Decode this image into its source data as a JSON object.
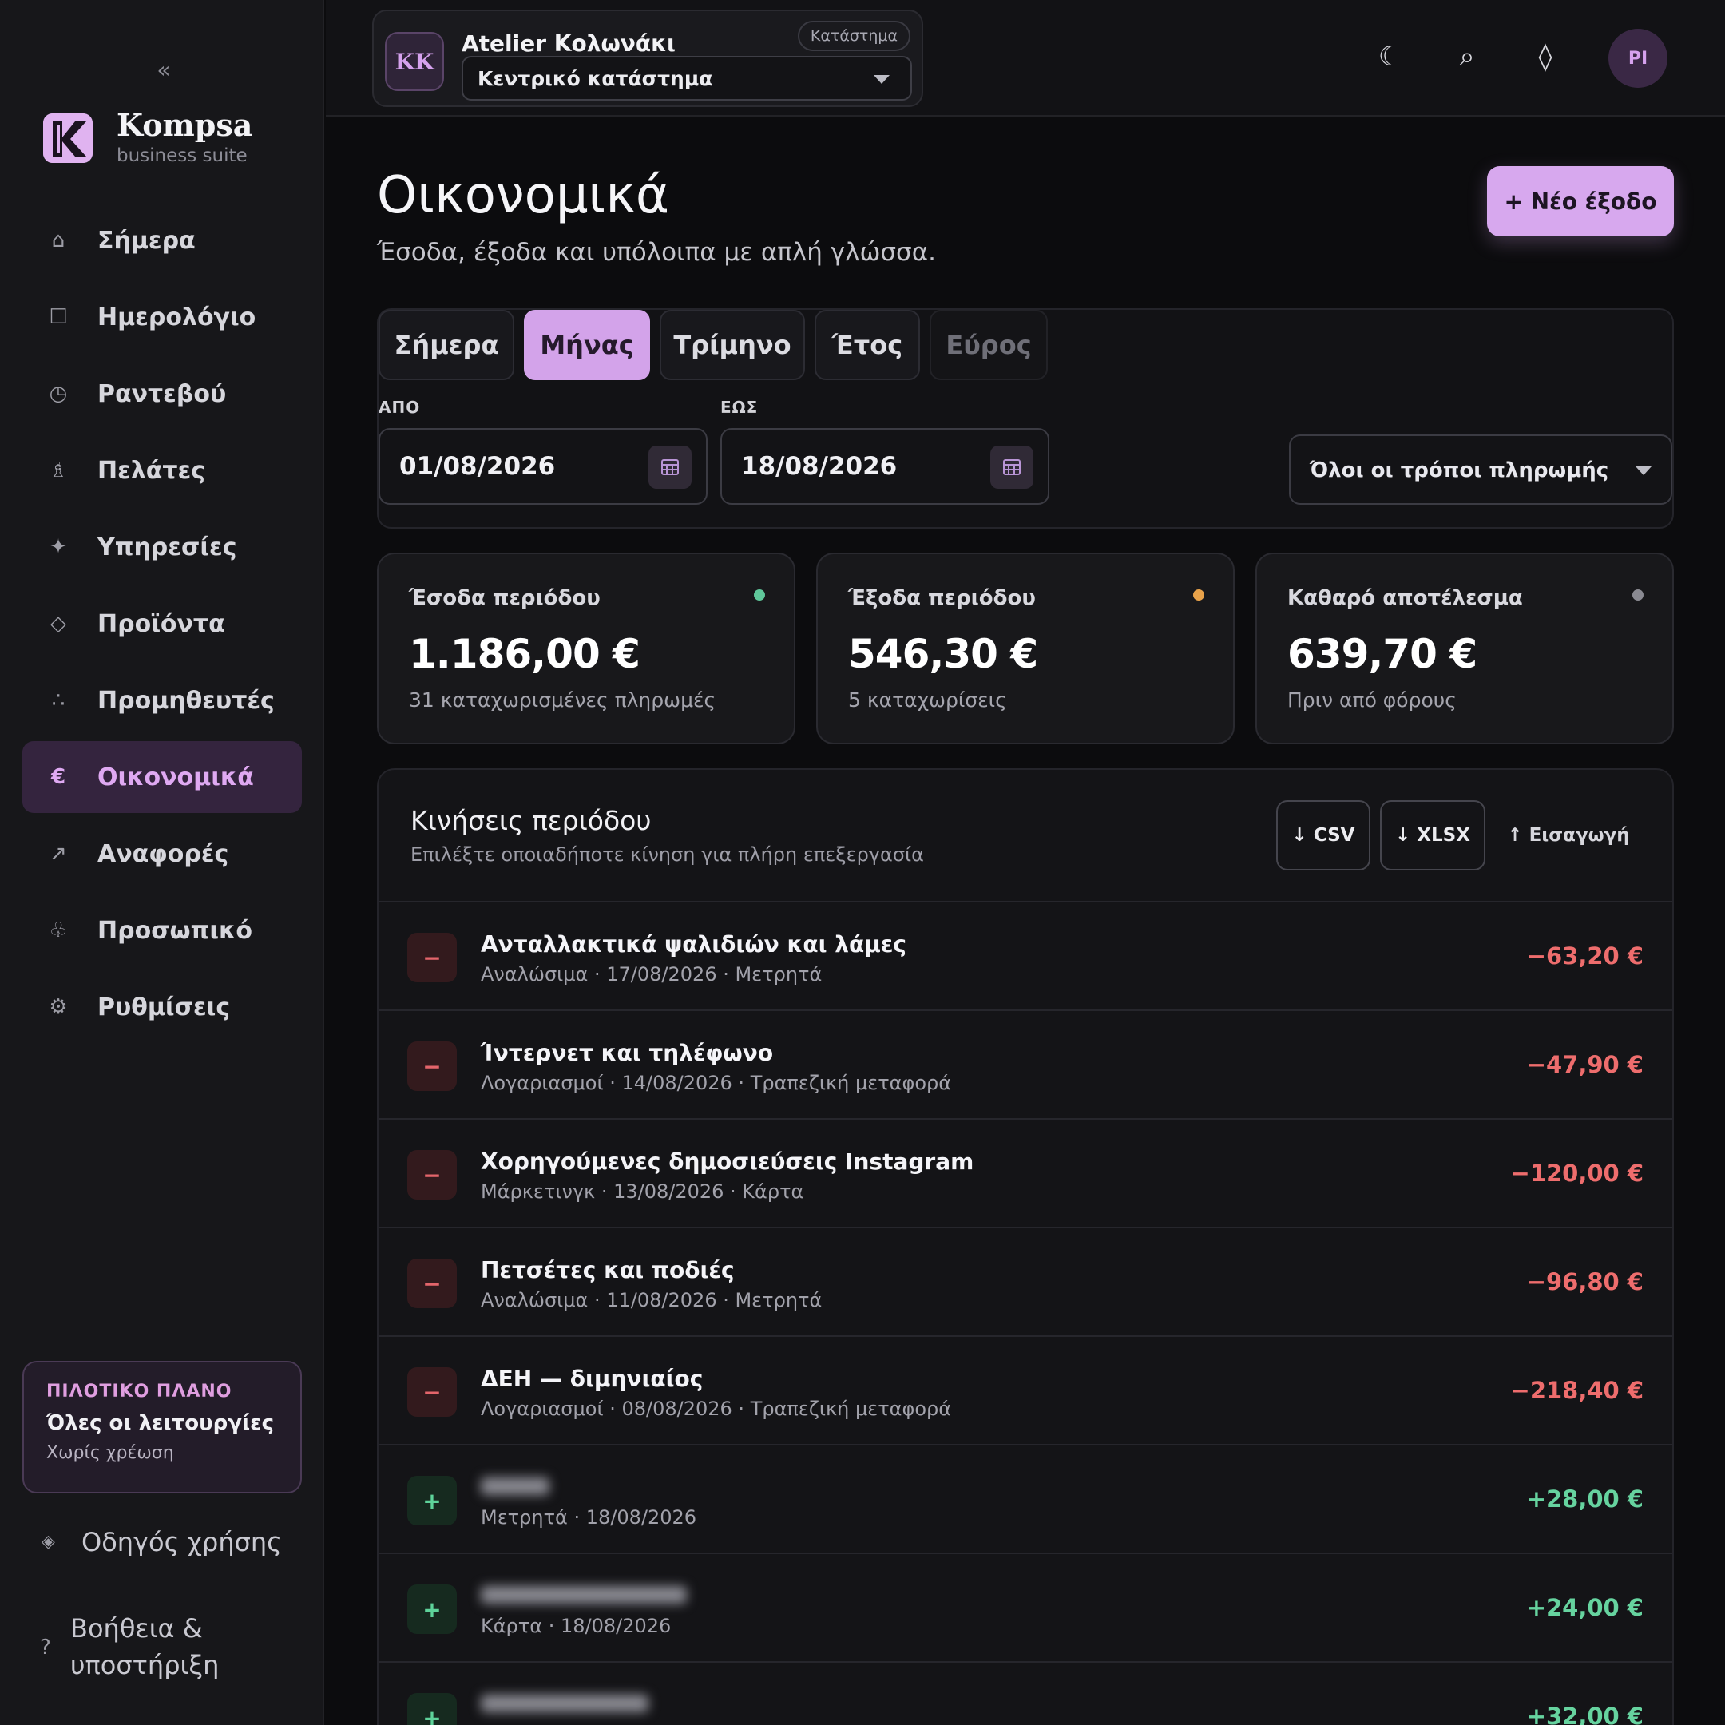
{
  "sidebar": {
    "collapse_glyph": "«",
    "brand": {
      "name": "Kompsa",
      "subtitle": "business suite",
      "logo_letter": "K"
    },
    "items": [
      {
        "label": "Σήμερα",
        "icon": "home-icon",
        "glyph": "⌂"
      },
      {
        "label": "Ημερολόγιο",
        "icon": "calendar-icon",
        "glyph": "☐"
      },
      {
        "label": "Ραντεβού",
        "icon": "clock-icon",
        "glyph": "◷"
      },
      {
        "label": "Πελάτες",
        "icon": "person-icon",
        "glyph": "♗"
      },
      {
        "label": "Υπηρεσίες",
        "icon": "sparkle-icon",
        "glyph": "✦"
      },
      {
        "label": "Προϊόντα",
        "icon": "diamond-icon",
        "glyph": "◇"
      },
      {
        "label": "Προμηθευτές",
        "icon": "dots-icon",
        "glyph": "∴"
      },
      {
        "label": "Οικονομικά",
        "icon": "euro-icon",
        "glyph": "€",
        "active": true
      },
      {
        "label": "Αναφορές",
        "icon": "arrow-up-right-icon",
        "glyph": "↗"
      },
      {
        "label": "Προσωπικό",
        "icon": "badge-icon",
        "glyph": "♧"
      },
      {
        "label": "Ρυθμίσεις",
        "icon": "gear-icon",
        "glyph": "⚙"
      }
    ],
    "plan": {
      "kicker": "ΠΙΛΟΤΙΚΟ ΠΛΑΝΟ",
      "title": "Όλες οι λειτουργίες",
      "subtitle": "Χωρίς χρέωση"
    },
    "guide": {
      "label": "Οδηγός χρήσης",
      "glyph": "◈"
    },
    "help": {
      "line1": "Βοήθεια &",
      "line2": "υποστήριξη",
      "glyph": "?"
    }
  },
  "topbar": {
    "store": {
      "initials": "KK",
      "name": "Atelier Κολωνάκι",
      "badge": "Κατάστημα",
      "branch": "Κεντρικό κατάστημα"
    },
    "icons": [
      {
        "name": "moon-icon",
        "glyph": "☾"
      },
      {
        "name": "search-icon",
        "glyph": "⌕"
      },
      {
        "name": "diamond-icon",
        "glyph": "◊"
      }
    ],
    "user_initials": "PI"
  },
  "page": {
    "title": "Οικονομικά",
    "subtitle": "Έσοδα, έξοδα και υπόλοιπα με απλή γλώσσα.",
    "new_button": "+ Νέο έξοδο"
  },
  "filters": {
    "tabs": [
      {
        "label": "Σήμερα"
      },
      {
        "label": "Μήνας",
        "active": true
      },
      {
        "label": "Τρίμηνο"
      },
      {
        "label": "Έτος"
      },
      {
        "label": "Εύρος",
        "muted": true
      }
    ],
    "from_label": "ΑΠΟ",
    "from_value": "01/08/2026",
    "to_label": "ΕΩΣ",
    "to_value": "18/08/2026",
    "payment_method": "Όλοι οι τρόποι πληρωμής"
  },
  "stats": [
    {
      "title": "Έσοδα περιόδου",
      "value": "1.186,00 €",
      "sub": "31 καταχωρισμένες πληρωμές",
      "dot_color": "#5fc79a"
    },
    {
      "title": "Έξοδα περιόδου",
      "value": "546,30 €",
      "sub": "5 καταχωρίσεις",
      "dot_color": "#e8a24a"
    },
    {
      "title": "Καθαρό αποτέλεσμα",
      "value": "639,70 €",
      "sub": "Πριν από φόρους",
      "dot_color": "#8a8a92"
    }
  ],
  "transactions": {
    "title": "Κινήσεις περιόδου",
    "subtitle": "Επιλέξτε οποιαδήποτε κίνηση για πλήρη επεξεργασία",
    "export_csv": "↓ CSV",
    "export_xlsx": "↓ XLSX",
    "import": "↑ Εισαγωγή",
    "rows": [
      {
        "type": "neg",
        "sign": "−",
        "title": "Ανταλλακτικά ψαλιδιών και λάμες",
        "meta": "Αναλώσιμα · 17/08/2026 · Μετρητά",
        "amount": "−63,20 €"
      },
      {
        "type": "neg",
        "sign": "−",
        "title": "Ίντερνετ και τηλέφωνο",
        "meta": "Λογαριασμοί · 14/08/2026 · Τραπεζική μεταφορά",
        "amount": "−47,90 €"
      },
      {
        "type": "neg",
        "sign": "−",
        "title": "Χορηγούμενες δημοσιεύσεις Instagram",
        "meta": "Μάρκετινγκ · 13/08/2026 · Κάρτα",
        "amount": "−120,00 €"
      },
      {
        "type": "neg",
        "sign": "−",
        "title": "Πετσέτες και ποδιές",
        "meta": "Αναλώσιμα · 11/08/2026 · Μετρητά",
        "amount": "−96,80 €"
      },
      {
        "type": "neg",
        "sign": "−",
        "title": "ΔΕΗ — διμηνιαίος",
        "meta": "Λογαριασμοί · 08/08/2026 · Τραπεζική μεταφορά",
        "amount": "−218,40 €"
      },
      {
        "type": "pos",
        "sign": "+",
        "title": "",
        "meta": "Μετρητά · 18/08/2026",
        "amount": "+28,00 €"
      },
      {
        "type": "pos",
        "sign": "+",
        "title": "",
        "meta": "Κάρτα · 18/08/2026",
        "amount": "+24,00 €"
      },
      {
        "type": "pos",
        "sign": "+",
        "title": "",
        "meta": "",
        "amount": "+32,00 €"
      }
    ]
  }
}
